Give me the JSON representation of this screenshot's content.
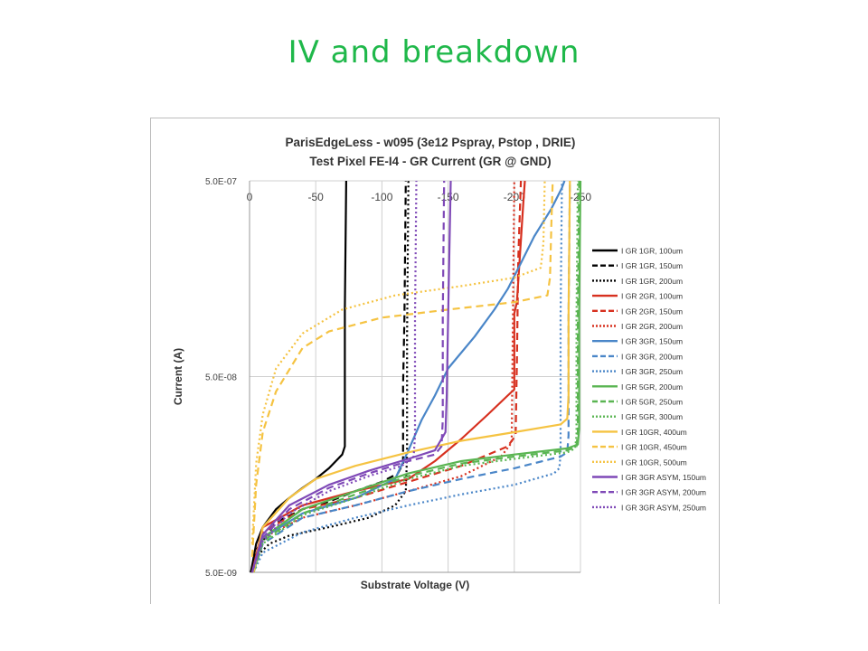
{
  "slide": {
    "title": "IV and breakdown"
  },
  "chart_data": {
    "type": "line",
    "title": "ParisEdgeLess - w095 (3e12 Pspray, Pstop , DRIE)",
    "subtitle": "Test Pixel FE-I4 - GR Current (GR @ GND)",
    "xlabel": "Substrate Voltage (V)",
    "ylabel": "Current (A)",
    "xlim": [
      0,
      -250
    ],
    "ylim": [
      5e-09,
      5e-07
    ],
    "ylog": true,
    "x_ticks": [
      "0",
      "-50",
      "-100",
      "-150",
      "-200",
      "-250"
    ],
    "y_ticks": [
      "5.0E-07",
      "5.0E-08",
      "5.0E-09"
    ],
    "y_tick_values": [
      5e-07,
      5e-08,
      5e-09
    ],
    "grid": true,
    "legend_position": "right",
    "series": [
      {
        "name": "I GR 1GR, 100um",
        "color": "#000000",
        "dash": "solid",
        "points": [
          [
            -1,
            5e-09
          ],
          [
            -5,
            7e-09
          ],
          [
            -10,
            8.5e-09
          ],
          [
            -20,
            1.05e-08
          ],
          [
            -30,
            1.2e-08
          ],
          [
            -40,
            1.35e-08
          ],
          [
            -50,
            1.5e-08
          ],
          [
            -60,
            1.7e-08
          ],
          [
            -70,
            2e-08
          ],
          [
            -72,
            2.2e-08
          ],
          [
            -72,
            1.1e-07
          ],
          [
            -73,
            5e-07
          ]
        ]
      },
      {
        "name": "I GR 1GR, 150um",
        "color": "#000000",
        "dash": "8,5",
        "points": [
          [
            -1,
            5e-09
          ],
          [
            -5,
            6.5e-09
          ],
          [
            -20,
            9e-09
          ],
          [
            -40,
            1.05e-08
          ],
          [
            -60,
            1.15e-08
          ],
          [
            -80,
            1.3e-08
          ],
          [
            -100,
            1.45e-08
          ],
          [
            -112,
            1.6e-08
          ],
          [
            -116,
            1.8e-08
          ],
          [
            -116,
            4.5e-08
          ],
          [
            -117,
            1e-07
          ],
          [
            -118,
            5e-07
          ]
        ]
      },
      {
        "name": "I GR 1GR, 200um",
        "color": "#000000",
        "dash": "2,3",
        "points": [
          [
            -2,
            5e-09
          ],
          [
            -5,
            6e-09
          ],
          [
            -15,
            7e-09
          ],
          [
            -30,
            7.7e-09
          ],
          [
            -60,
            8.5e-09
          ],
          [
            -90,
            9.5e-09
          ],
          [
            -110,
            1.1e-08
          ],
          [
            -118,
            1.3e-08
          ],
          [
            -119,
            2e-08
          ],
          [
            -119,
            8e-08
          ],
          [
            -120,
            5e-07
          ]
        ]
      },
      {
        "name": "I GR 2GR, 100um",
        "color": "#d7301f",
        "dash": "solid",
        "points": [
          [
            -2,
            5e-09
          ],
          [
            -10,
            8.5e-09
          ],
          [
            -40,
            1.1e-08
          ],
          [
            -80,
            1.3e-08
          ],
          [
            -120,
            1.5e-08
          ],
          [
            -140,
            1.85e-08
          ],
          [
            -160,
            2.4e-08
          ],
          [
            -180,
            3.2e-08
          ],
          [
            -195,
            4e-08
          ],
          [
            -200,
            4.3e-08
          ],
          [
            -200,
            1.05e-07
          ],
          [
            -202,
            1.2e-07
          ],
          [
            -207,
            4e-07
          ],
          [
            -208,
            5e-07
          ]
        ]
      },
      {
        "name": "I GR 2GR, 150um",
        "color": "#d7301f",
        "dash": "8,5",
        "points": [
          [
            -2,
            5e-09
          ],
          [
            -10,
            8e-09
          ],
          [
            -40,
            1.05e-08
          ],
          [
            -80,
            1.2e-08
          ],
          [
            -120,
            1.45e-08
          ],
          [
            -160,
            1.75e-08
          ],
          [
            -195,
            2.2e-08
          ],
          [
            -201,
            2.5e-08
          ],
          [
            -202,
            6e-08
          ],
          [
            -203,
            2e-07
          ],
          [
            -205,
            5e-07
          ]
        ]
      },
      {
        "name": "I GR 2GR, 200um",
        "color": "#d7301f",
        "dash": "2,3",
        "points": [
          [
            -2,
            5e-09
          ],
          [
            -10,
            7.5e-09
          ],
          [
            -40,
            9.5e-09
          ],
          [
            -80,
            1.1e-08
          ],
          [
            -120,
            1.3e-08
          ],
          [
            -160,
            1.55e-08
          ],
          [
            -190,
            1.95e-08
          ],
          [
            -198,
            2.3e-08
          ],
          [
            -199,
            1e-07
          ],
          [
            -200,
            5e-07
          ]
        ]
      },
      {
        "name": "I GR 3GR, 150um",
        "color": "#4a86c8",
        "dash": "solid",
        "points": [
          [
            -3,
            5e-09
          ],
          [
            -10,
            7.5e-09
          ],
          [
            -40,
            1e-08
          ],
          [
            -80,
            1.2e-08
          ],
          [
            -110,
            1.5e-08
          ],
          [
            -120,
            2.1e-08
          ],
          [
            -130,
            3e-08
          ],
          [
            -140,
            4e-08
          ],
          [
            -150,
            5.5e-08
          ],
          [
            -170,
            8e-08
          ],
          [
            -185,
            1.1e-07
          ],
          [
            -195,
            1.4e-07
          ],
          [
            -205,
            1.9e-07
          ],
          [
            -215,
            2.6e-07
          ],
          [
            -228,
            3.6e-07
          ],
          [
            -236,
            4.6e-07
          ],
          [
            -238,
            5e-07
          ]
        ]
      },
      {
        "name": "I GR 3GR, 200um",
        "color": "#4a86c8",
        "dash": "8,5",
        "points": [
          [
            -3,
            5e-09
          ],
          [
            -10,
            7e-09
          ],
          [
            -40,
            9.5e-09
          ],
          [
            -80,
            1.1e-08
          ],
          [
            -120,
            1.3e-08
          ],
          [
            -160,
            1.5e-08
          ],
          [
            -200,
            1.7e-08
          ],
          [
            -235,
            1.95e-08
          ],
          [
            -240,
            2.05e-08
          ],
          [
            -241,
            2.5e-08
          ],
          [
            -241,
            1e-07
          ],
          [
            -242,
            5e-07
          ]
        ]
      },
      {
        "name": "I GR 3GR, 250um",
        "color": "#4a86c8",
        "dash": "2,3",
        "points": [
          [
            -3,
            5e-09
          ],
          [
            -10,
            6.3e-09
          ],
          [
            -40,
            8e-09
          ],
          [
            -80,
            9.5e-09
          ],
          [
            -120,
            1.1e-08
          ],
          [
            -160,
            1.25e-08
          ],
          [
            -200,
            1.4e-08
          ],
          [
            -230,
            1.6e-08
          ],
          [
            -234,
            1.7e-08
          ],
          [
            -235,
            2e-08
          ],
          [
            -235,
            1e-07
          ],
          [
            -236,
            5e-07
          ]
        ]
      },
      {
        "name": "I GR 5GR, 200um",
        "color": "#5ab552",
        "dash": "solid",
        "points": [
          [
            -3,
            5e-09
          ],
          [
            -10,
            7.5e-09
          ],
          [
            -40,
            1.05e-08
          ],
          [
            -80,
            1.3e-08
          ],
          [
            -120,
            1.6e-08
          ],
          [
            -160,
            1.85e-08
          ],
          [
            -200,
            2e-08
          ],
          [
            -240,
            2.15e-08
          ],
          [
            -248,
            2.25e-08
          ],
          [
            -249,
            2.7e-08
          ],
          [
            -249,
            1e-07
          ],
          [
            -250,
            5e-07
          ]
        ]
      },
      {
        "name": "I GR 5GR, 250um",
        "color": "#5ab552",
        "dash": "8,5",
        "points": [
          [
            -3,
            5e-09
          ],
          [
            -10,
            7.2e-09
          ],
          [
            -40,
            1e-08
          ],
          [
            -80,
            1.25e-08
          ],
          [
            -120,
            1.55e-08
          ],
          [
            -160,
            1.8e-08
          ],
          [
            -200,
            1.95e-08
          ],
          [
            -240,
            2.1e-08
          ],
          [
            -247,
            2.2e-08
          ],
          [
            -248,
            2.6e-08
          ],
          [
            -248,
            1e-07
          ],
          [
            -249,
            5e-07
          ]
        ]
      },
      {
        "name": "I GR 5GR, 300um",
        "color": "#5ab552",
        "dash": "2,3",
        "points": [
          [
            -3,
            5e-09
          ],
          [
            -10,
            7e-09
          ],
          [
            -40,
            9.8e-09
          ],
          [
            -80,
            1.2e-08
          ],
          [
            -120,
            1.5e-08
          ],
          [
            -160,
            1.75e-08
          ],
          [
            -200,
            1.9e-08
          ],
          [
            -240,
            2.05e-08
          ],
          [
            -246,
            2.15e-08
          ],
          [
            -247,
            2.5e-08
          ],
          [
            -247,
            1e-07
          ],
          [
            -248,
            5e-07
          ]
        ]
      },
      {
        "name": "I GR 10GR, 400um",
        "color": "#f5c342",
        "dash": "solid",
        "points": [
          [
            -3,
            5e-09
          ],
          [
            -10,
            8.5e-09
          ],
          [
            -30,
            1.2e-08
          ],
          [
            -50,
            1.5e-08
          ],
          [
            -80,
            1.75e-08
          ],
          [
            -120,
            2.05e-08
          ],
          [
            -160,
            2.35e-08
          ],
          [
            -200,
            2.6e-08
          ],
          [
            -235,
            2.85e-08
          ],
          [
            -240,
            3.05e-08
          ],
          [
            -241,
            4e-08
          ],
          [
            -241,
            1e-07
          ],
          [
            -242,
            5e-07
          ]
        ]
      },
      {
        "name": "I GR 10GR, 450um",
        "color": "#f5c342",
        "dash": "8,5",
        "points": [
          [
            -2,
            6e-09
          ],
          [
            -5,
            1.4e-08
          ],
          [
            -10,
            2.6e-08
          ],
          [
            -20,
            4.2e-08
          ],
          [
            -40,
            7e-08
          ],
          [
            -60,
            8.5e-08
          ],
          [
            -100,
            1e-07
          ],
          [
            -150,
            1.1e-07
          ],
          [
            -200,
            1.2e-07
          ],
          [
            -225,
            1.3e-07
          ],
          [
            -227,
            1.6e-07
          ],
          [
            -228,
            3e-07
          ],
          [
            -229,
            5e-07
          ]
        ]
      },
      {
        "name": "I GR 10GR, 500um",
        "color": "#f5c342",
        "dash": "2,3",
        "points": [
          [
            -2,
            7e-09
          ],
          [
            -5,
            1.8e-08
          ],
          [
            -10,
            3.2e-08
          ],
          [
            -20,
            5.5e-08
          ],
          [
            -40,
            8.3e-08
          ],
          [
            -70,
            1.1e-07
          ],
          [
            -110,
            1.3e-07
          ],
          [
            -160,
            1.45e-07
          ],
          [
            -200,
            1.6e-07
          ],
          [
            -220,
            1.8e-07
          ],
          [
            -222,
            2.4e-07
          ],
          [
            -223,
            5e-07
          ]
        ]
      },
      {
        "name": "I GR 3GR ASYM, 150um",
        "color": "#7f49b7",
        "dash": "solid",
        "points": [
          [
            -2,
            5e-09
          ],
          [
            -10,
            7.8e-09
          ],
          [
            -30,
            1.1e-08
          ],
          [
            -60,
            1.4e-08
          ],
          [
            -90,
            1.65e-08
          ],
          [
            -120,
            1.9e-08
          ],
          [
            -140,
            2.1e-08
          ],
          [
            -148,
            2.6e-08
          ],
          [
            -149,
            4e-08
          ],
          [
            -150,
            1e-07
          ],
          [
            -152,
            5e-07
          ]
        ]
      },
      {
        "name": "I GR 3GR ASYM, 200um",
        "color": "#7f49b7",
        "dash": "8,5",
        "points": [
          [
            -2,
            5e-09
          ],
          [
            -10,
            7.5e-09
          ],
          [
            -30,
            1.05e-08
          ],
          [
            -60,
            1.35e-08
          ],
          [
            -90,
            1.6e-08
          ],
          [
            -120,
            1.85e-08
          ],
          [
            -140,
            2e-08
          ],
          [
            -145,
            2.2e-08
          ],
          [
            -146,
            3e-08
          ],
          [
            -146,
            1e-07
          ],
          [
            -147,
            5e-07
          ]
        ]
      },
      {
        "name": "I GR 3GR ASYM, 250um",
        "color": "#7f49b7",
        "dash": "2,3",
        "points": [
          [
            -2,
            5e-09
          ],
          [
            -10,
            7.2e-09
          ],
          [
            -30,
            1e-08
          ],
          [
            -60,
            1.3e-08
          ],
          [
            -90,
            1.55e-08
          ],
          [
            -115,
            1.75e-08
          ],
          [
            -124,
            1.95e-08
          ],
          [
            -125,
            2.5e-08
          ],
          [
            -125,
            1e-07
          ],
          [
            -126,
            5e-07
          ]
        ]
      }
    ]
  }
}
